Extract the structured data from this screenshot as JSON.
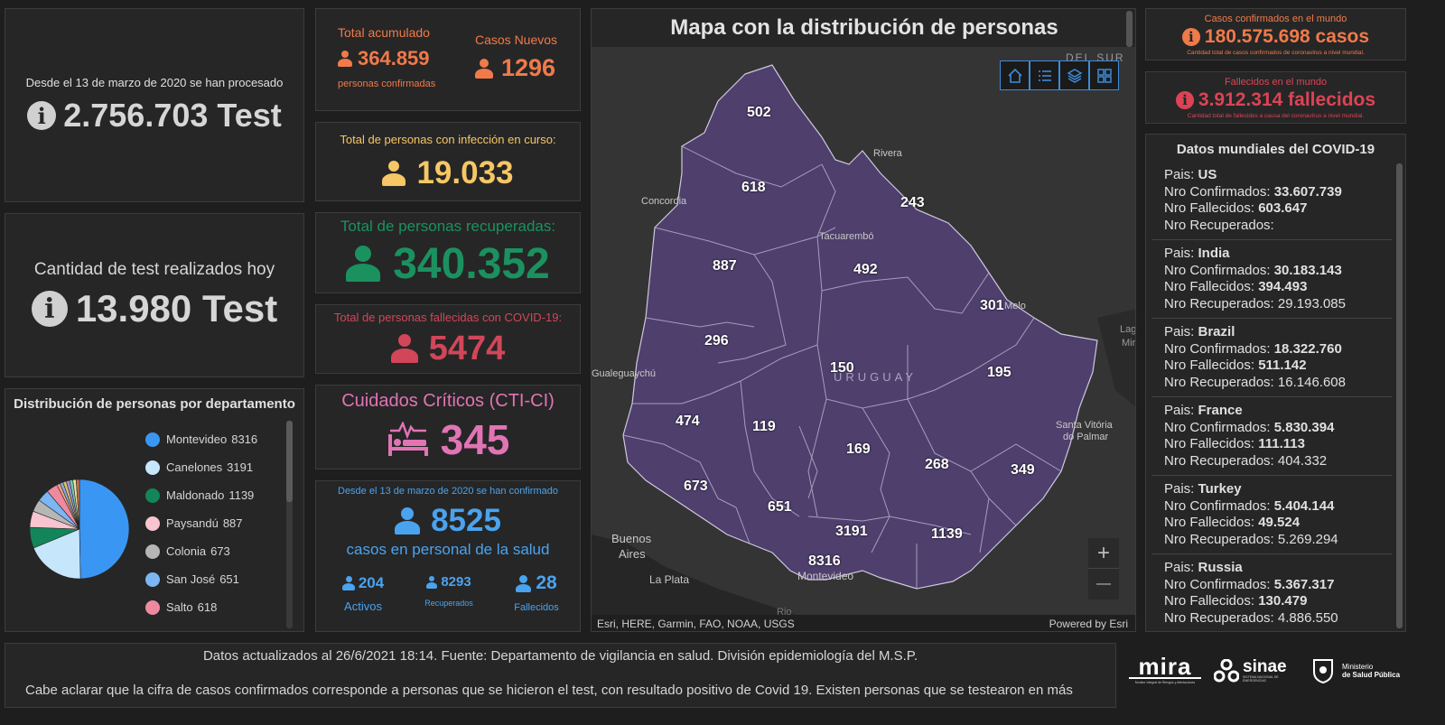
{
  "tests": {
    "since_text": "Desde el 13 de marzo de 2020 se han procesado",
    "total_value": "2.756.703 Test",
    "today_label": "Cantidad de test realizados hoy",
    "today_value": "13.980 Test"
  },
  "distribution": {
    "title": "Distribución de personas por departamento",
    "legend": [
      {
        "name": "Montevideo",
        "value": "8316",
        "color": "#3a96f3"
      },
      {
        "name": "Canelones",
        "value": "3191",
        "color": "#c6e6fb"
      },
      {
        "name": "Maldonado",
        "value": "1139",
        "color": "#13855a"
      },
      {
        "name": "Paysandú",
        "value": "887",
        "color": "#f7c4d0"
      },
      {
        "name": "Colonia",
        "value": "673",
        "color": "#b6b6b6"
      },
      {
        "name": "San José",
        "value": "651",
        "color": "#7cb6f5"
      },
      {
        "name": "Salto",
        "value": "618",
        "color": "#ee8aa0"
      }
    ]
  },
  "accum": {
    "label": "Total acumulado",
    "value": "364.859",
    "sub": "personas confirmadas",
    "new_label": "Casos Nuevos",
    "new_value": "1296"
  },
  "active": {
    "label": "Total de personas con infección en curso:",
    "value": "19.033"
  },
  "recovered": {
    "label": "Total de personas recuperadas:",
    "value": "340.352"
  },
  "deaths": {
    "label": "Total de personas fallecidas con COVID-19:",
    "value": "5474"
  },
  "cti": {
    "label": "Cuidados Críticos (CTI-CI)",
    "value": "345"
  },
  "health": {
    "since_text": "Desde el 13 de marzo de 2020 se han confirmado",
    "value": "8525",
    "label": "casos en personal de la salud",
    "activos_value": "204",
    "activos_label": "Activos",
    "recuperados_value": "8293",
    "recuperados_label": "Recuperados",
    "fallecidos_value": "28",
    "fallecidos_label": "Fallecidos"
  },
  "map": {
    "title": "Mapa con la distribución de personas",
    "attribution": "Esri, HERE, Garmin, FAO, NOAA, USGS",
    "powered": "Powered by Esri",
    "country_label": "URUGUAY",
    "places": {
      "del_sur": "DEL SUR",
      "concordia": "Concordia",
      "rivera": "Rivera",
      "tacuarembo": "Tacuarembó",
      "melo": "Melo",
      "gualeguaychu": "Gualeguaychú",
      "santa_vitoria": "Santa Vitória",
      "do_palmar": "do Palmar",
      "buenos": "Buenos",
      "aires": "Aires",
      "la_plata": "La Plata",
      "montevideo": "Montevideo",
      "rio": "Rio",
      "lag": "Lag",
      "mir": "Mir"
    },
    "numbers": {
      "artigas": "502",
      "salto": "618",
      "rivera": "243",
      "paysandu": "887",
      "tacuarembo": "492",
      "cerro_largo": "301",
      "rio_negro": "296",
      "durazno": "150",
      "treinta_tres": "195",
      "soriano": "474",
      "flores": "119",
      "florida": "169",
      "lavalleja": "268",
      "rocha": "349",
      "colonia": "673",
      "san_jose": "651",
      "canelones": "3191",
      "maldonado": "1139",
      "montevideo": "8316"
    },
    "zoom_in": "+",
    "zoom_out": "—"
  },
  "world": {
    "cases_label": "Casos confirmados en el mundo",
    "cases_value": "180.575.698 casos",
    "cases_sub": "Cantidad total de casos confirmados de coronavirus a nivel mundial.",
    "deaths_label": "Fallecidos en el mundo",
    "deaths_value": "3.912.314 fallecidos",
    "deaths_sub": "Cantidad total de fallecidos a causa del coronavirus a nivel mundial.",
    "list_title": "Datos mundiales del COVID-19",
    "lbl_pais": "Pais: ",
    "lbl_conf": "Nro Confirmados: ",
    "lbl_fall": "Nro Fallecidos: ",
    "lbl_rec": "Nro Recuperados: ",
    "countries": [
      {
        "name": "US",
        "confirmed": "33.607.739",
        "deaths": "603.647",
        "recovered": ""
      },
      {
        "name": "India",
        "confirmed": "30.183.143",
        "deaths": "394.493",
        "recovered": "29.193.085"
      },
      {
        "name": "Brazil",
        "confirmed": "18.322.760",
        "deaths": "511.142",
        "recovered": "16.146.608"
      },
      {
        "name": "France",
        "confirmed": "5.830.394",
        "deaths": "111.113",
        "recovered": "404.332"
      },
      {
        "name": "Turkey",
        "confirmed": "5.404.144",
        "deaths": "49.524",
        "recovered": "5.269.294"
      },
      {
        "name": "Russia",
        "confirmed": "5.367.317",
        "deaths": "130.479",
        "recovered": "4.886.550"
      }
    ]
  },
  "footer": {
    "line1": "Datos actualizados al 26/6/2021 18:14. Fuente: Departamento de vigilancia en salud. División epidemiología del M.S.P.",
    "line2": "Cabe aclarar que la cifra de casos confirmados corresponde a personas que se hicieron el test, con resultado positivo de Covid 19. Existen personas que se testearon en más",
    "logo_mira": "mira",
    "logo_mira_sub": "Monitor Integral de Riesgos y Afectaciones",
    "logo_sinae": "sinae",
    "logo_sinae_sub": "SISTEMA NACIONAL DE EMERGENCIAS",
    "logo_msp_1": "Ministerio",
    "logo_msp_2": "de Salud Pública"
  },
  "colors": {
    "orange": "#f07a4a",
    "yellow": "#f6c765",
    "green": "#1b9160",
    "red": "#d2465a",
    "pink": "#e174b4",
    "blue": "#4aa3ee",
    "world_red": "#dd4355"
  }
}
